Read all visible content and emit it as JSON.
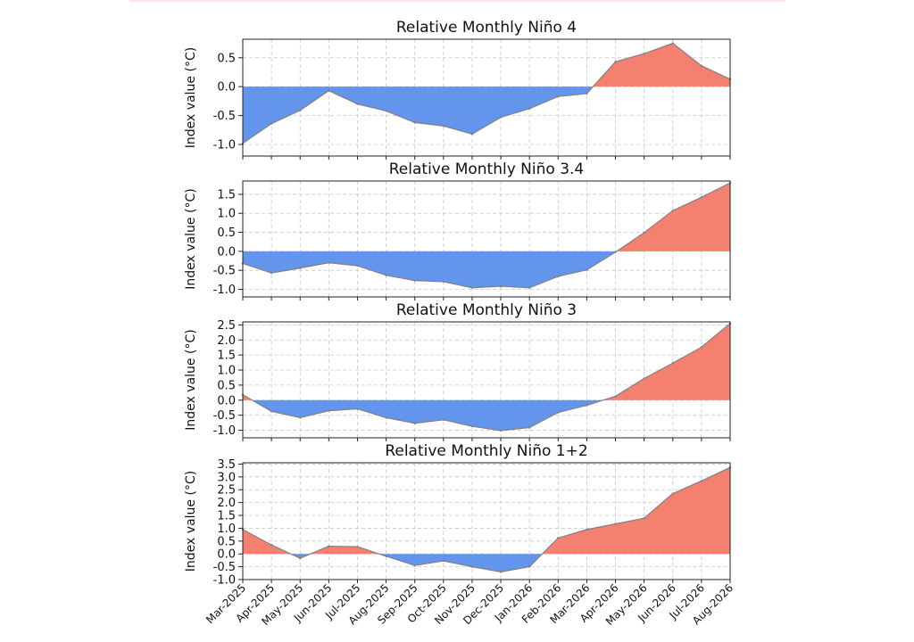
{
  "chart_data": [
    {
      "type": "area",
      "title": "Relative Monthly Niño 4",
      "ylabel": "Index value (°C)",
      "xlabel": "",
      "ylim": [
        -1.2,
        0.82
      ],
      "yticks": [
        "0.5",
        "0.0",
        "-0.5",
        "-1.0"
      ],
      "ytick_values": [
        0.5,
        0.0,
        -0.5,
        -1.0
      ],
      "grid": true,
      "positive_color": "#f4806f",
      "negative_color": "#6495ed",
      "values": [
        -0.98,
        -0.64,
        -0.41,
        -0.07,
        -0.3,
        -0.42,
        -0.62,
        -0.68,
        -0.82,
        -0.53,
        -0.38,
        -0.17,
        -0.12,
        0.43,
        0.57,
        0.75,
        0.36,
        0.13
      ]
    },
    {
      "type": "area",
      "title": "Relative Monthly Niño 3.4",
      "ylabel": "Index value (°C)",
      "xlabel": "",
      "ylim": [
        -1.2,
        1.85
      ],
      "yticks": [
        "1.5",
        "1.0",
        "0.5",
        "0.0",
        "-0.5",
        "-1.0"
      ],
      "ytick_values": [
        1.5,
        1.0,
        0.5,
        0.0,
        -0.5,
        -1.0
      ],
      "grid": true,
      "positive_color": "#f4806f",
      "negative_color": "#6495ed",
      "values": [
        -0.32,
        -0.57,
        -0.44,
        -0.3,
        -0.38,
        -0.63,
        -0.77,
        -0.8,
        -0.96,
        -0.92,
        -0.96,
        -0.66,
        -0.49,
        -0.02,
        0.49,
        1.07,
        1.42,
        1.8
      ]
    },
    {
      "type": "area",
      "title": "Relative Monthly Niño 3",
      "ylabel": "Index value (°C)",
      "xlabel": "",
      "ylim": [
        -1.25,
        2.6
      ],
      "yticks": [
        "2.5",
        "2.0",
        "1.5",
        "1.0",
        "0.5",
        "0.0",
        "-0.5",
        "-1.0"
      ],
      "ytick_values": [
        2.5,
        2.0,
        1.5,
        1.0,
        0.5,
        0.0,
        -0.5,
        -1.0
      ],
      "grid": true,
      "positive_color": "#f4806f",
      "negative_color": "#6495ed",
      "values": [
        0.18,
        -0.37,
        -0.58,
        -0.35,
        -0.29,
        -0.58,
        -0.77,
        -0.65,
        -0.87,
        -1.01,
        -0.91,
        -0.41,
        -0.17,
        0.13,
        0.72,
        1.23,
        1.76,
        2.55
      ]
    },
    {
      "type": "area",
      "title": "Relative Monthly Niño 1+2",
      "ylabel": "Index value (°C)",
      "xlabel": "",
      "ylim": [
        -1.0,
        3.55
      ],
      "yticks": [
        "3.5",
        "3.0",
        "2.5",
        "2.0",
        "1.5",
        "1.0",
        "0.5",
        "0.0",
        "-0.5",
        "-1.0"
      ],
      "ytick_values": [
        3.5,
        3.0,
        2.5,
        2.0,
        1.5,
        1.0,
        0.5,
        0.0,
        -0.5,
        -1.0
      ],
      "grid": true,
      "positive_color": "#f4806f",
      "negative_color": "#6495ed",
      "values": [
        0.95,
        0.35,
        -0.17,
        0.3,
        0.28,
        -0.09,
        -0.45,
        -0.27,
        -0.5,
        -0.7,
        -0.5,
        0.62,
        0.95,
        1.17,
        1.39,
        2.35,
        2.84,
        3.37
      ]
    }
  ],
  "x_categories": [
    "Mar-2025",
    "Apr-2025",
    "May-2025",
    "Jun-2025",
    "Jul-2025",
    "Aug-2025",
    "Sep-2025",
    "Oct-2025",
    "Nov-2025",
    "Dec-2025",
    "Jan-2026",
    "Feb-2026",
    "Mar-2026",
    "Apr-2026",
    "May-2026",
    "Jun-2026",
    "Jul-2026",
    "Aug-2026"
  ]
}
